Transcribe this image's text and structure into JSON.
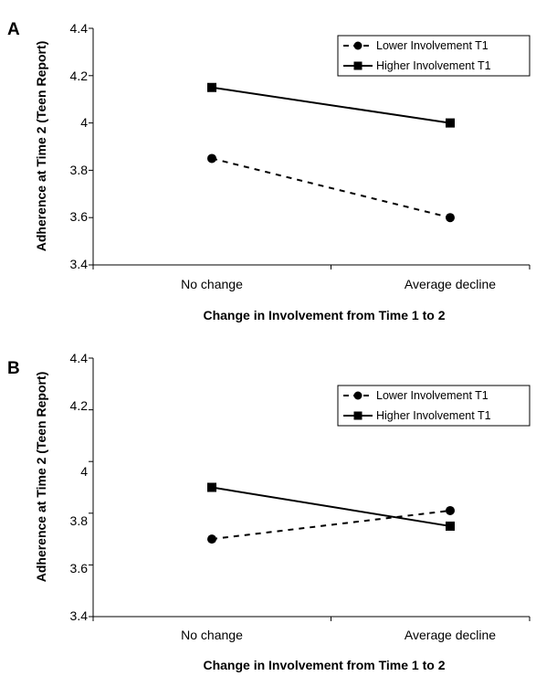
{
  "chart_data": [
    {
      "panel_label": "A",
      "type": "line",
      "categories": [
        "No change",
        "Average decline"
      ],
      "series": [
        {
          "name": "Lower Involvement T1",
          "values": [
            3.85,
            3.6
          ],
          "line_style": "dashed",
          "marker": "circle",
          "color": "#000000"
        },
        {
          "name": "Higher Involvement T1",
          "values": [
            4.15,
            4.0
          ],
          "line_style": "solid",
          "marker": "square",
          "color": "#000000"
        }
      ],
      "ylim": [
        3.4,
        4.4
      ],
      "yticks": [
        "4.4",
        "4.2",
        "4",
        "3.8",
        "3.6",
        "3.4"
      ],
      "ytick_values": [
        4.4,
        4.2,
        4.0,
        3.8,
        3.6,
        3.4
      ],
      "ylabel": "Adherence at Time 2 (Teen Report)",
      "xlabel": "Change in Involvement from Time 1 to 2",
      "legend_position": "top-right",
      "grid": false
    },
    {
      "panel_label": "B",
      "type": "line",
      "categories": [
        "No change",
        "Average decline"
      ],
      "series": [
        {
          "name": "Lower Involvement T1",
          "values": [
            3.7,
            3.81
          ],
          "line_style": "dashed",
          "marker": "circle",
          "color": "#000000"
        },
        {
          "name": "Higher Involvement T1",
          "values": [
            3.9,
            3.75
          ],
          "line_style": "solid",
          "marker": "square",
          "color": "#000000"
        }
      ],
      "ylim": [
        3.4,
        4.4
      ],
      "yticks": [
        "4.4",
        "4.2",
        "4",
        "3.8",
        "3.6",
        "3.4"
      ],
      "ytick_values": [
        4.4,
        4.2,
        4.0,
        3.8,
        3.6,
        3.4
      ],
      "ylabel": "Adherence at Time 2 (Teen Report)",
      "xlabel": "Change in Involvement from Time 1 to 2",
      "legend_position": "top-right",
      "grid": false
    }
  ]
}
